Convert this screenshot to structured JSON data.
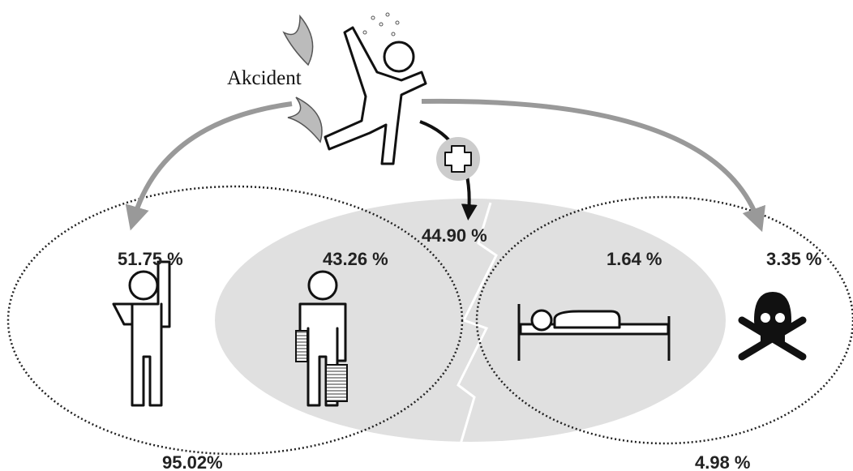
{
  "title": "Akcident",
  "outcomes": [
    {
      "label": "51.75 %"
    },
    {
      "label": "43.26 %"
    },
    {
      "label": "1.64 %"
    },
    {
      "label": "3.35 %"
    }
  ],
  "treated": {
    "label": "44.90 %"
  },
  "groups": [
    {
      "label": "95.02%"
    },
    {
      "label": "4.98 %"
    }
  ]
}
